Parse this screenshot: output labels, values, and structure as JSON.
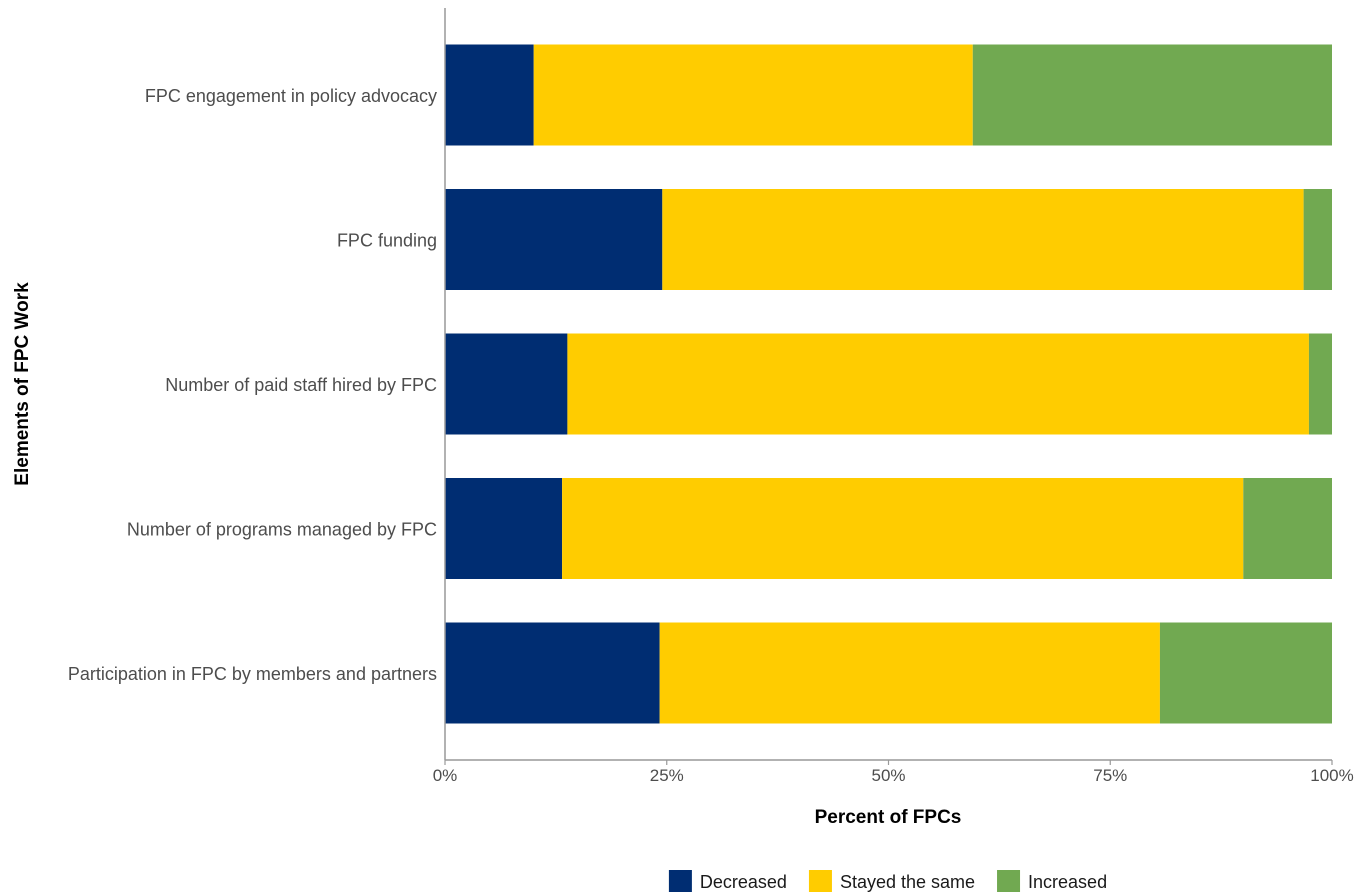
{
  "chart_data": {
    "type": "bar",
    "orientation": "horizontal",
    "stacked": true,
    "xlabel": "Percent of FPCs",
    "ylabel": "Elements of FPC Work",
    "xlim": [
      0,
      100
    ],
    "x_ticks": [
      {
        "value": 0,
        "label": "0%"
      },
      {
        "value": 25,
        "label": "25%"
      },
      {
        "value": 50,
        "label": "50%"
      },
      {
        "value": 75,
        "label": "75%"
      },
      {
        "value": 100,
        "label": "100%"
      }
    ],
    "categories": [
      "FPC engagement in policy advocacy",
      "FPC funding",
      "Number of paid staff hired by FPC",
      "Number of programs managed by FPC",
      "Participation in FPC by members and partners"
    ],
    "series": [
      {
        "name": "Decreased",
        "color": "#002d72",
        "values": [
          10,
          24.5,
          13.8,
          13.2,
          24.2
        ]
      },
      {
        "name": "Stayed the same",
        "color": "#ffcc00",
        "values": [
          49.5,
          72.3,
          83.6,
          76.8,
          56.4
        ]
      },
      {
        "name": "Increased",
        "color": "#71a951",
        "values": [
          40.5,
          3.2,
          2.6,
          10,
          19.4
        ]
      }
    ],
    "grid": false,
    "legend_position": "bottom"
  }
}
